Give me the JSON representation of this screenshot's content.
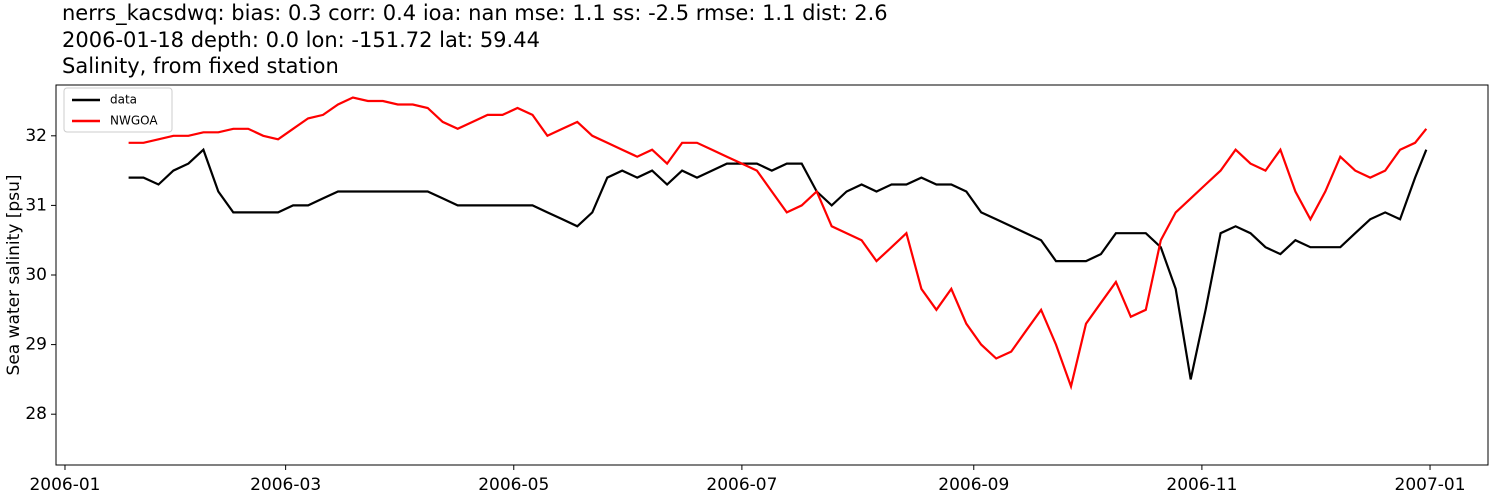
{
  "chart_data": {
    "type": "line",
    "title": [
      "nerrs_kacsdwq: bias: 0.3  corr: 0.4  ioa: nan  mse: 1.1  ss: -2.5  rmse: 1.1  dist: 2.6",
      "2006-01-18 depth: 0.0 lon: -151.72 lat: 59.44",
      "Salinity, from fixed station"
    ],
    "ylabel": "Sea water salinity [psu]",
    "x": [
      17,
      21,
      25,
      29,
      33,
      37,
      41,
      45,
      49,
      53,
      57,
      61,
      65,
      69,
      73,
      77,
      81,
      85,
      89,
      93,
      97,
      101,
      105,
      109,
      113,
      117,
      121,
      125,
      129,
      133,
      137,
      141,
      145,
      149,
      153,
      157,
      161,
      165,
      169,
      173,
      177,
      181,
      185,
      189,
      193,
      197,
      201,
      205,
      209,
      213,
      217,
      221,
      225,
      229,
      233,
      237,
      241,
      245,
      249,
      253,
      257,
      261,
      265,
      269,
      273,
      277,
      281,
      285,
      289,
      293,
      297,
      301,
      305,
      309,
      313,
      317,
      321,
      325,
      329,
      333,
      337,
      341,
      345,
      349,
      353,
      357,
      361,
      364
    ],
    "series": [
      {
        "name": "data",
        "color": "#000000",
        "values": [
          31.4,
          31.4,
          31.3,
          31.5,
          31.6,
          31.8,
          31.2,
          30.9,
          30.9,
          30.9,
          30.9,
          31.0,
          31.0,
          31.1,
          31.2,
          31.2,
          31.2,
          31.2,
          31.2,
          31.2,
          31.2,
          31.1,
          31.0,
          31.0,
          31.0,
          31.0,
          31.0,
          31.0,
          30.9,
          30.8,
          30.7,
          30.9,
          31.4,
          31.5,
          31.4,
          31.5,
          31.3,
          31.5,
          31.4,
          31.5,
          31.6,
          31.6,
          31.6,
          31.5,
          31.6,
          31.6,
          31.2,
          31.0,
          31.2,
          31.3,
          31.2,
          31.3,
          31.3,
          31.4,
          31.3,
          31.3,
          31.2,
          30.9,
          30.8,
          30.7,
          30.6,
          30.5,
          30.2,
          30.2,
          30.2,
          30.3,
          30.6,
          30.6,
          30.6,
          30.4,
          29.8,
          28.5,
          29.5,
          30.6,
          30.7,
          30.6,
          30.4,
          30.3,
          30.5,
          30.4,
          30.4,
          30.4,
          30.6,
          30.8,
          30.9,
          30.8,
          31.4,
          31.8
        ]
      },
      {
        "name": "NWGOA",
        "color": "#ff0000",
        "values": [
          31.9,
          31.9,
          31.95,
          32.0,
          32.0,
          32.05,
          32.05,
          32.1,
          32.1,
          32.0,
          31.95,
          32.1,
          32.25,
          32.3,
          32.45,
          32.55,
          32.5,
          32.5,
          32.45,
          32.45,
          32.4,
          32.2,
          32.1,
          32.2,
          32.3,
          32.3,
          32.4,
          32.3,
          32.0,
          32.1,
          32.2,
          32.0,
          31.9,
          31.8,
          31.7,
          31.8,
          31.6,
          31.9,
          31.9,
          31.8,
          31.7,
          31.6,
          31.5,
          31.2,
          30.9,
          31.0,
          31.2,
          30.7,
          30.6,
          30.5,
          30.2,
          30.4,
          30.6,
          29.8,
          29.5,
          29.8,
          29.3,
          29.0,
          28.8,
          28.9,
          29.2,
          29.5,
          29.0,
          28.4,
          29.3,
          29.6,
          29.9,
          29.4,
          29.5,
          30.5,
          30.9,
          31.1,
          31.3,
          31.5,
          31.8,
          31.6,
          31.5,
          31.8,
          31.2,
          30.8,
          31.2,
          31.7,
          31.5,
          31.4,
          31.5,
          31.8,
          31.9,
          32.1
        ]
      }
    ],
    "xlim": [
      -2.4,
      380.5
    ],
    "xticks": [
      {
        "value": 0,
        "label": "2006-01"
      },
      {
        "value": 59,
        "label": "2006-03"
      },
      {
        "value": 120,
        "label": "2006-05"
      },
      {
        "value": 181,
        "label": "2006-07"
      },
      {
        "value": 243,
        "label": "2006-09"
      },
      {
        "value": 304,
        "label": "2006-11"
      },
      {
        "value": 365,
        "label": "2007-01"
      }
    ],
    "ylim": [
      27.27,
      32.73
    ],
    "yticks": [
      28,
      29,
      30,
      31,
      32
    ],
    "legend": "upper left"
  }
}
